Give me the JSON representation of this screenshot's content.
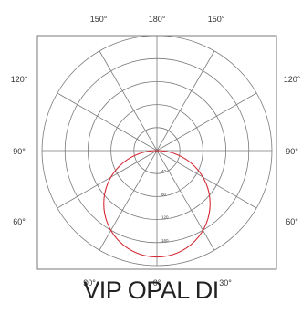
{
  "chart_data": {
    "type": "polar",
    "angle_labels": [
      {
        "text": "150°",
        "angle": 150
      },
      {
        "text": "180°",
        "angle": 180
      },
      {
        "text": "150°",
        "angle": -150
      },
      {
        "text": "120°",
        "angle": 120
      },
      {
        "text": "120°",
        "angle": -120
      },
      {
        "text": "90°",
        "angle": 90
      },
      {
        "text": "90°",
        "angle": -90
      },
      {
        "text": "60°",
        "angle": 60
      },
      {
        "text": "60°",
        "angle": -60
      },
      {
        "text": "30°",
        "angle": 30
      },
      {
        "text": "0°",
        "angle": 0
      },
      {
        "text": "30°",
        "angle": -30
      }
    ],
    "radial_ticks": [
      "40",
      "80",
      "120",
      "160"
    ],
    "rings": 5,
    "spoke_step_deg": 30,
    "series": [
      {
        "color": "#d62a36",
        "shape": "circle-through-origin",
        "peak_value": 185,
        "peak_angle": 0
      }
    ]
  },
  "caption": "VIP OPAL DI",
  "colors": {
    "grid": "#7a7a7a",
    "curve": "#d62a36",
    "text": "#333333"
  }
}
